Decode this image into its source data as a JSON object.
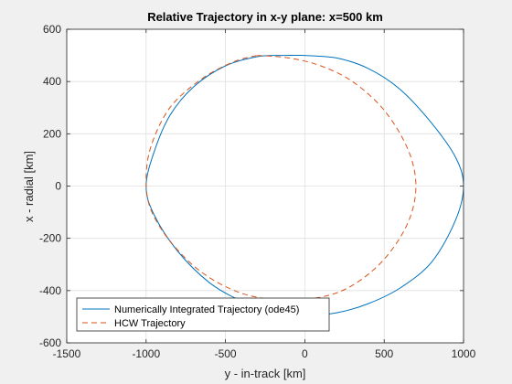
{
  "chart_data": {
    "type": "line",
    "title": "Relative Trajectory in x-y plane: x=500 km",
    "xlabel": "y - in-track [km]",
    "ylabel": "x - radial [km]",
    "xlim": [
      -1500,
      1000
    ],
    "ylim": [
      -600,
      600
    ],
    "xticks": [
      -1500,
      -1000,
      -500,
      0,
      500,
      1000
    ],
    "xtick_labels": [
      "-1500",
      "-1000",
      "-500",
      "0",
      "500",
      "1000"
    ],
    "yticks": [
      -600,
      -400,
      -200,
      0,
      200,
      400,
      600
    ],
    "ytick_labels": [
      "-600",
      "-400",
      "-200",
      "0",
      "200",
      "400",
      "600"
    ],
    "grid": true,
    "legend_location": "bottom-left",
    "series": [
      {
        "name": "Numerically Integrated Trajectory (ode45)",
        "color": "#0072bd",
        "style": "solid",
        "x": [
          0,
          200,
          400,
          600,
          800,
          950,
          1000,
          950,
          800,
          600,
          400,
          200,
          0,
          -200,
          -400,
          -600,
          -800,
          -950,
          -1000,
          -950,
          -850,
          -700,
          -500,
          -300,
          -150,
          0
        ],
        "y": [
          500,
          490,
          450,
          370,
          240,
          110,
          0,
          -130,
          -290,
          -390,
          -450,
          -485,
          -495,
          -480,
          -440,
          -370,
          -250,
          -110,
          0,
          130,
          270,
          380,
          460,
          495,
          500,
          500
        ]
      },
      {
        "name": "HCW Trajectory",
        "color": "#d95319",
        "style": "dashed",
        "x": [
          -300,
          -100,
          100,
          300,
          500,
          650,
          700,
          650,
          500,
          300,
          100,
          -150,
          -400,
          -650,
          -850,
          -970,
          -1000,
          -970,
          -850,
          -650,
          -450,
          -300
        ],
        "y": [
          500,
          490,
          460,
          400,
          290,
          140,
          0,
          -140,
          -280,
          -380,
          -425,
          -435,
          -410,
          -330,
          -210,
          -90,
          20,
          150,
          300,
          410,
          475,
          500
        ]
      }
    ]
  }
}
